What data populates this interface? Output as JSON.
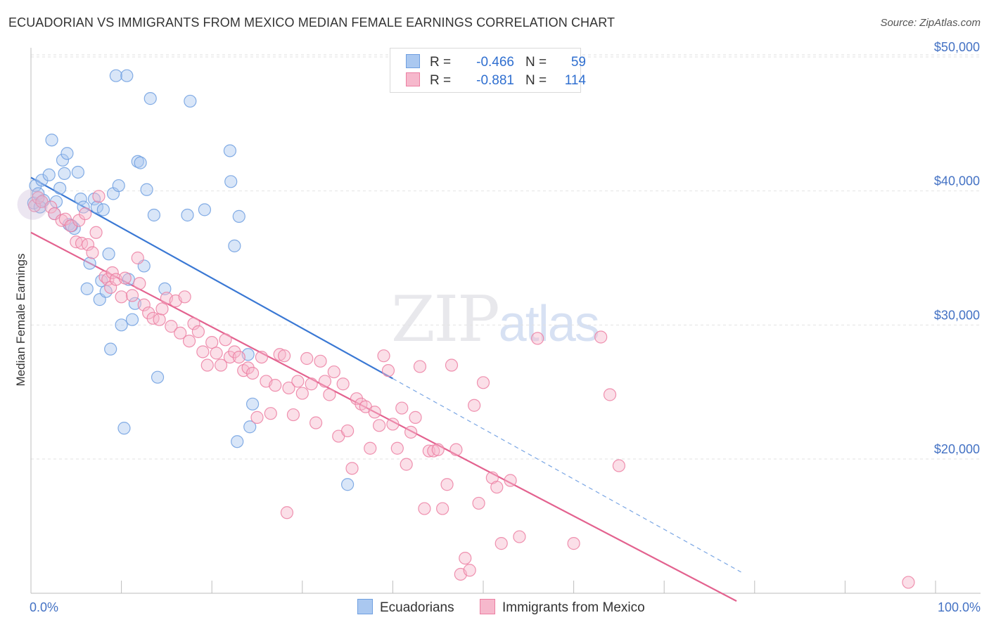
{
  "title": "ECUADORIAN VS IMMIGRANTS FROM MEXICO MEDIAN FEMALE EARNINGS CORRELATION CHART",
  "source": "Source: ZipAtlas.com",
  "watermark": {
    "zip": "ZIP",
    "atlas": "atlas"
  },
  "legend": {
    "rows": [
      {
        "r_label": "R =",
        "r_value": "-0.466",
        "n_label": "N =",
        "n_value": "59",
        "color": "#aac8f0"
      },
      {
        "r_label": "R =",
        "r_value": "-0.881",
        "n_label": "N =",
        "n_value": "114",
        "color": "#f6b8cc"
      }
    ]
  },
  "bottom_legend": [
    {
      "label": "Ecuadorians",
      "color": "#aac8f0"
    },
    {
      "label": "Immigrants from Mexico",
      "color": "#f6b8cc"
    }
  ],
  "chart_data": {
    "type": "scatter",
    "title": "ECUADORIAN VS IMMIGRANTS FROM MEXICO MEDIAN FEMALE EARNINGS CORRELATION CHART",
    "xlabel": "",
    "ylabel": "Median Female Earnings",
    "xlim": [
      0,
      100
    ],
    "ylim": [
      10000,
      51000
    ],
    "x_tick_labels": [
      "0.0%",
      "100.0%"
    ],
    "y_ticks": [
      20000,
      30000,
      40000,
      50000
    ],
    "y_tick_labels": [
      "$20,000",
      "$30,000",
      "$40,000",
      "$50,000"
    ],
    "grid": true,
    "legend_position": "top-center",
    "series": [
      {
        "name": "Ecuadorians",
        "color": "#6f9fe0",
        "fill": "#aac8f0",
        "trend": {
          "x0": 0,
          "y0": 41000,
          "x1": 100,
          "y1": 3500,
          "solid_until": 40
        },
        "points": [
          [
            0.3,
            39100
          ],
          [
            0.5,
            40400
          ],
          [
            0.8,
            39800
          ],
          [
            1.2,
            40800
          ],
          [
            1.4,
            39300
          ],
          [
            2.0,
            41200
          ],
          [
            2.3,
            43800
          ],
          [
            2.6,
            38300
          ],
          [
            2.8,
            39200
          ],
          [
            3.2,
            40200
          ],
          [
            3.5,
            42300
          ],
          [
            3.7,
            41300
          ],
          [
            4.0,
            42800
          ],
          [
            4.2,
            37500
          ],
          [
            4.8,
            37200
          ],
          [
            5.2,
            41400
          ],
          [
            5.5,
            39400
          ],
          [
            5.8,
            38800
          ],
          [
            6.2,
            32700
          ],
          [
            6.5,
            34600
          ],
          [
            7.0,
            39400
          ],
          [
            7.3,
            38800
          ],
          [
            7.6,
            31900
          ],
          [
            7.8,
            33300
          ],
          [
            8.0,
            38600
          ],
          [
            8.3,
            32500
          ],
          [
            8.6,
            35300
          ],
          [
            8.8,
            28200
          ],
          [
            9.1,
            39800
          ],
          [
            9.4,
            48600
          ],
          [
            9.7,
            40400
          ],
          [
            10.0,
            30000
          ],
          [
            10.3,
            22300
          ],
          [
            10.6,
            48600
          ],
          [
            10.8,
            33400
          ],
          [
            11.2,
            30400
          ],
          [
            11.5,
            31600
          ],
          [
            11.8,
            42200
          ],
          [
            12.1,
            42100
          ],
          [
            12.5,
            34400
          ],
          [
            12.8,
            40100
          ],
          [
            13.2,
            46900
          ],
          [
            13.6,
            38200
          ],
          [
            14.0,
            26100
          ],
          [
            14.8,
            32700
          ],
          [
            17.3,
            38200
          ],
          [
            17.6,
            46700
          ],
          [
            19.2,
            38600
          ],
          [
            22.0,
            43000
          ],
          [
            22.1,
            40700
          ],
          [
            22.5,
            35900
          ],
          [
            22.8,
            21300
          ],
          [
            23.0,
            38100
          ],
          [
            24.0,
            27800
          ],
          [
            24.2,
            22400
          ],
          [
            24.5,
            24100
          ],
          [
            35.0,
            18100
          ],
          [
            1.0,
            38800
          ],
          [
            4.5,
            37400
          ]
        ]
      },
      {
        "name": "Immigrants from Mexico",
        "color": "#ec7fa2",
        "fill": "#f6b8cc",
        "trend": {
          "x0": 0,
          "y0": 36900,
          "x1": 78,
          "y1": 9400
        },
        "points": [
          [
            0.4,
            38900
          ],
          [
            0.8,
            39500
          ],
          [
            1.2,
            39200
          ],
          [
            2.2,
            38800
          ],
          [
            2.6,
            38300
          ],
          [
            3.4,
            37800
          ],
          [
            3.8,
            37900
          ],
          [
            4.4,
            37400
          ],
          [
            5.0,
            36200
          ],
          [
            5.3,
            37800
          ],
          [
            5.6,
            36100
          ],
          [
            6.0,
            38300
          ],
          [
            6.3,
            36000
          ],
          [
            6.8,
            35400
          ],
          [
            7.2,
            36900
          ],
          [
            7.5,
            39600
          ],
          [
            8.2,
            33600
          ],
          [
            8.5,
            33400
          ],
          [
            8.8,
            32800
          ],
          [
            9.0,
            33900
          ],
          [
            9.4,
            33400
          ],
          [
            10.0,
            32100
          ],
          [
            10.4,
            33500
          ],
          [
            11.2,
            32200
          ],
          [
            11.8,
            35000
          ],
          [
            12.0,
            33100
          ],
          [
            12.5,
            31500
          ],
          [
            13.0,
            30900
          ],
          [
            13.5,
            30500
          ],
          [
            14.2,
            30400
          ],
          [
            14.5,
            31200
          ],
          [
            15.0,
            32000
          ],
          [
            15.5,
            29900
          ],
          [
            16.0,
            31800
          ],
          [
            16.5,
            29400
          ],
          [
            17.0,
            32100
          ],
          [
            17.5,
            28800
          ],
          [
            18.0,
            30100
          ],
          [
            18.5,
            29500
          ],
          [
            19.0,
            28000
          ],
          [
            19.5,
            27000
          ],
          [
            20.0,
            28700
          ],
          [
            20.5,
            27900
          ],
          [
            21.0,
            27000
          ],
          [
            21.5,
            28900
          ],
          [
            22.0,
            27600
          ],
          [
            22.5,
            28000
          ],
          [
            23.0,
            27600
          ],
          [
            23.5,
            26600
          ],
          [
            24.0,
            26800
          ],
          [
            24.5,
            26400
          ],
          [
            25.0,
            23100
          ],
          [
            25.5,
            27600
          ],
          [
            26.0,
            25800
          ],
          [
            26.5,
            23400
          ],
          [
            27.0,
            25500
          ],
          [
            27.5,
            27800
          ],
          [
            28.0,
            27700
          ],
          [
            28.5,
            25300
          ],
          [
            29.0,
            23300
          ],
          [
            29.5,
            25800
          ],
          [
            30.0,
            24900
          ],
          [
            30.5,
            27500
          ],
          [
            31.0,
            25600
          ],
          [
            31.5,
            22700
          ],
          [
            32.0,
            27300
          ],
          [
            32.5,
            25800
          ],
          [
            33.0,
            24800
          ],
          [
            33.5,
            26500
          ],
          [
            34.0,
            21700
          ],
          [
            34.5,
            25600
          ],
          [
            35.0,
            22100
          ],
          [
            35.5,
            19300
          ],
          [
            36.0,
            24500
          ],
          [
            36.5,
            24100
          ],
          [
            37.0,
            23900
          ],
          [
            37.5,
            20800
          ],
          [
            38.0,
            23500
          ],
          [
            38.5,
            22500
          ],
          [
            39.0,
            27700
          ],
          [
            39.5,
            26600
          ],
          [
            40.0,
            22600
          ],
          [
            40.5,
            20800
          ],
          [
            41.0,
            23800
          ],
          [
            41.5,
            19600
          ],
          [
            42.0,
            22000
          ],
          [
            42.5,
            23100
          ],
          [
            43.0,
            26900
          ],
          [
            43.5,
            16300
          ],
          [
            44.0,
            20600
          ],
          [
            44.5,
            20600
          ],
          [
            45.0,
            20700
          ],
          [
            45.5,
            16300
          ],
          [
            46.0,
            18100
          ],
          [
            46.5,
            27000
          ],
          [
            47.0,
            20700
          ],
          [
            47.5,
            11400
          ],
          [
            48.0,
            12600
          ],
          [
            48.5,
            11700
          ],
          [
            49.0,
            24000
          ],
          [
            49.5,
            16700
          ],
          [
            50.0,
            25700
          ],
          [
            51.0,
            18600
          ],
          [
            51.5,
            17900
          ],
          [
            52.0,
            13700
          ],
          [
            53.0,
            18400
          ],
          [
            54.0,
            14200
          ],
          [
            56.0,
            29000
          ],
          [
            60.0,
            13700
          ],
          [
            63.0,
            29100
          ],
          [
            64.0,
            24800
          ],
          [
            65.0,
            19500
          ],
          [
            97.0,
            10800
          ],
          [
            28.3,
            16000
          ]
        ]
      }
    ]
  }
}
